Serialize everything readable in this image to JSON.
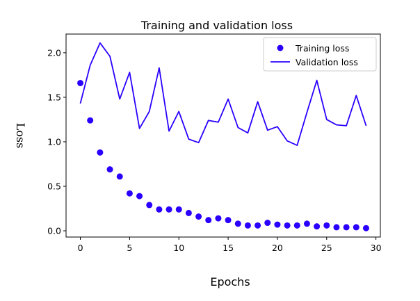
{
  "chart_data": {
    "type": "line",
    "title": "Training and validation loss",
    "xlabel": "Epochs",
    "ylabel": "Loss",
    "xlim": [
      -1.45,
      30.45
    ],
    "ylim": [
      -0.07,
      2.21
    ],
    "xticks": [
      0,
      5,
      10,
      15,
      20,
      25,
      30
    ],
    "yticks": [
      0.0,
      0.5,
      1.0,
      1.5,
      2.0
    ],
    "xtick_labels": [
      "0",
      "5",
      "10",
      "15",
      "20",
      "25",
      "30"
    ],
    "ytick_labels": [
      "0.0",
      "0.5",
      "1.0",
      "1.5",
      "2.0"
    ],
    "grid": false,
    "legend_position": "top-right",
    "series": [
      {
        "name": "Training loss",
        "style": "markers",
        "color": "#2a00ff",
        "x": [
          0,
          1,
          2,
          3,
          4,
          5,
          6,
          7,
          8,
          9,
          10,
          11,
          12,
          13,
          14,
          15,
          16,
          17,
          18,
          19,
          20,
          21,
          22,
          23,
          24,
          25,
          26,
          27,
          28,
          29
        ],
        "values": [
          1.66,
          1.24,
          0.88,
          0.69,
          0.61,
          0.42,
          0.39,
          0.29,
          0.24,
          0.24,
          0.24,
          0.2,
          0.16,
          0.12,
          0.14,
          0.12,
          0.08,
          0.06,
          0.06,
          0.09,
          0.07,
          0.06,
          0.06,
          0.08,
          0.05,
          0.06,
          0.04,
          0.04,
          0.04,
          0.03
        ]
      },
      {
        "name": "Validation loss",
        "style": "line",
        "color": "#2a00ff",
        "x": [
          0,
          1,
          2,
          3,
          4,
          5,
          6,
          7,
          8,
          9,
          10,
          11,
          12,
          13,
          14,
          15,
          16,
          17,
          18,
          19,
          20,
          21,
          22,
          23,
          24,
          25,
          26,
          27,
          28,
          29
        ],
        "values": [
          1.43,
          1.86,
          2.11,
          1.96,
          1.48,
          1.78,
          1.15,
          1.34,
          1.83,
          1.12,
          1.34,
          1.03,
          0.99,
          1.24,
          1.22,
          1.48,
          1.16,
          1.1,
          1.45,
          1.13,
          1.17,
          1.01,
          0.96,
          1.33,
          1.69,
          1.25,
          1.19,
          1.18,
          1.52,
          1.18
        ]
      }
    ]
  }
}
